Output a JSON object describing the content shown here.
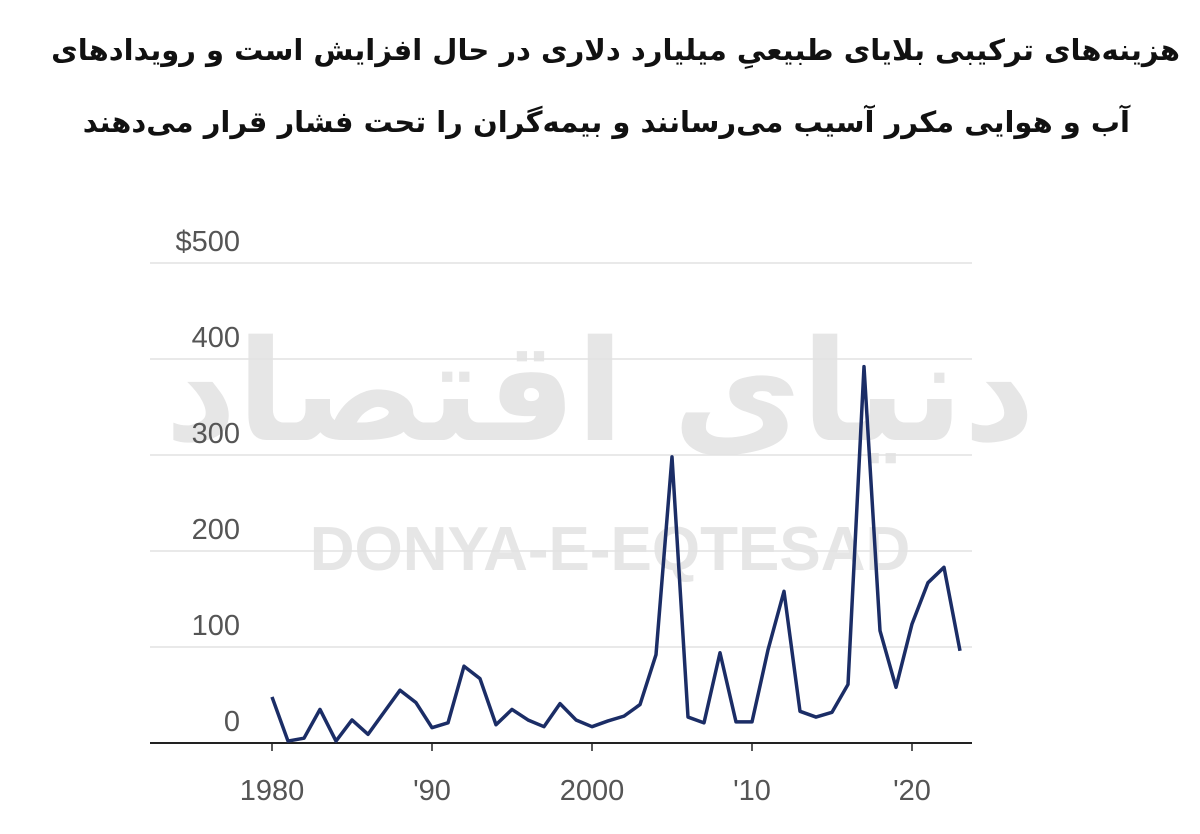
{
  "chart_data": {
    "type": "line",
    "title_lines": [
      "هزینه‌های ترکیبی بلایای طبیعیِ میلیارد دلاری در حال افزایش است و رویدادهای",
      "آب و هوایی مکرر آسیب می‌رسانند و بیمه‌گران را تحت فشار قرار می‌دهند"
    ],
    "watermark": [
      "دنیای اقتصاد",
      "DONYA-E-EQTESAD"
    ],
    "x": [
      1980,
      1981,
      1982,
      1983,
      1984,
      1985,
      1986,
      1987,
      1988,
      1989,
      1990,
      1991,
      1992,
      1993,
      1994,
      1995,
      1996,
      1997,
      1998,
      1999,
      2000,
      2001,
      2002,
      2003,
      2004,
      2005,
      2006,
      2007,
      2008,
      2009,
      2010,
      2011,
      2012,
      2013,
      2014,
      2015,
      2016,
      2017,
      2018,
      2019,
      2020,
      2021,
      2022,
      2023
    ],
    "series": [
      {
        "color": "#1b2d66",
        "values": [
          48,
          2,
          5,
          35,
          2,
          24,
          9,
          32,
          55,
          42,
          16,
          21,
          80,
          67,
          19,
          35,
          24,
          17,
          41,
          24,
          17,
          23,
          28,
          40,
          92,
          298,
          27,
          21,
          94,
          22,
          22,
          97,
          158,
          33,
          27,
          32,
          61,
          392,
          117,
          58,
          124,
          167,
          183,
          96
        ]
      }
    ],
    "xlim": [
      1972,
      2024
    ],
    "xticks": [
      {
        "value": 1980,
        "label": "1980"
      },
      {
        "value": 1990,
        "label": "'90"
      },
      {
        "value": 2000,
        "label": "2000"
      },
      {
        "value": 2010,
        "label": "'10"
      },
      {
        "value": 2020,
        "label": "'20"
      }
    ],
    "ylim": [
      0,
      500
    ],
    "yticks": [
      0,
      100,
      200,
      300,
      400,
      {
        "value": 500,
        "label": "$500"
      }
    ],
    "grid": true
  }
}
